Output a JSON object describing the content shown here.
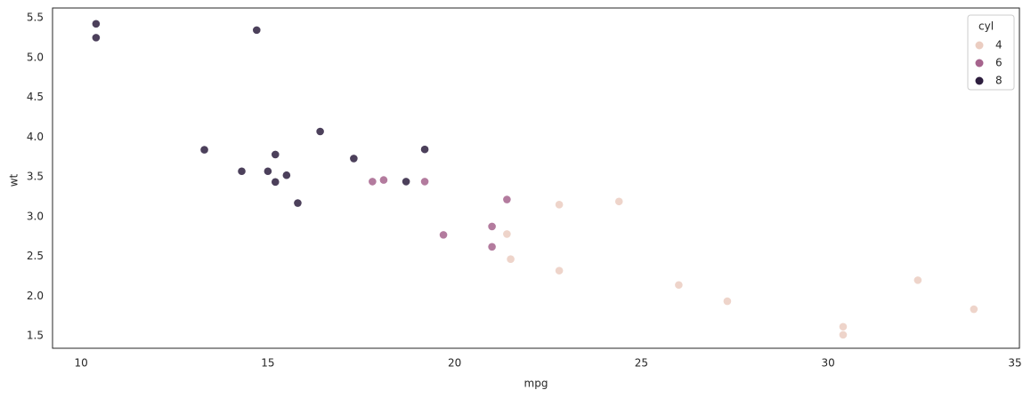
{
  "chart_data": {
    "type": "scatter",
    "xlabel": "mpg",
    "ylabel": "wt",
    "xlim": [
      9.235,
      35.12
    ],
    "ylim": [
      1.344,
      5.623
    ],
    "xticks": [
      10,
      15,
      20,
      25,
      30,
      35
    ],
    "yticks": [
      1.5,
      {
        "value": 2,
        "label": "2.0"
      },
      2.5,
      {
        "value": 3,
        "label": "3.0"
      },
      3.5,
      {
        "value": 4,
        "label": "4.0"
      },
      4.5,
      {
        "value": 5,
        "label": "5.0"
      },
      5.5
    ],
    "grid": false,
    "legend_title": "cyl",
    "legend_position": "upper-right",
    "series": [
      {
        "name": "4",
        "color": "#ebcdc1",
        "x": [
          22.8,
          24.4,
          22.8,
          32.4,
          30.4,
          33.9,
          21.5,
          27.3,
          26.0,
          30.4,
          21.4
        ],
        "values": [
          2.32,
          3.19,
          3.15,
          2.2,
          1.615,
          1.835,
          2.465,
          1.935,
          2.14,
          1.513,
          2.78
        ]
      },
      {
        "name": "6",
        "color": "#a6648d",
        "x": [
          21.0,
          21.0,
          21.4,
          18.1,
          19.2,
          17.8,
          19.7
        ],
        "values": [
          2.62,
          2.875,
          3.215,
          3.46,
          3.44,
          3.44,
          2.77
        ]
      },
      {
        "name": "8",
        "color": "#2d1e3e",
        "x": [
          18.7,
          14.3,
          16.4,
          17.3,
          15.2,
          10.4,
          10.4,
          14.7,
          15.5,
          15.2,
          13.3,
          19.2,
          15.8,
          15.0
        ],
        "values": [
          3.44,
          3.57,
          4.07,
          3.73,
          3.78,
          5.25,
          5.424,
          5.345,
          3.52,
          3.435,
          3.84,
          3.845,
          3.17,
          3.57
        ]
      }
    ]
  }
}
